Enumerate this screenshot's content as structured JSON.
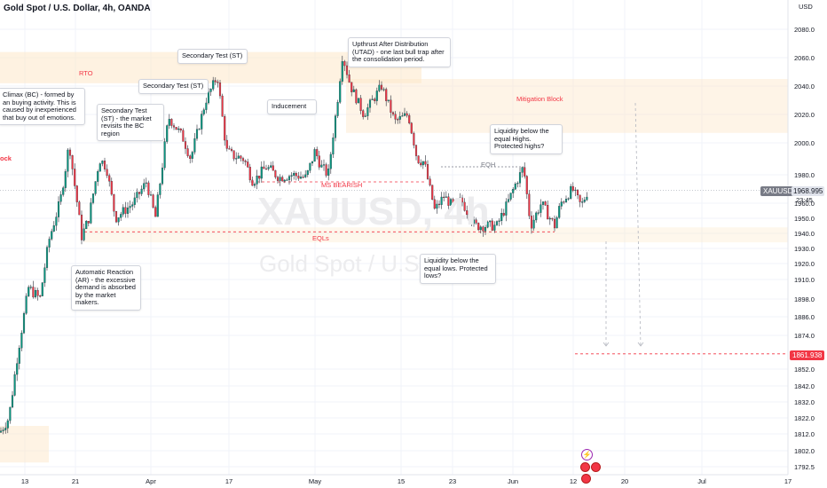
{
  "title": "Gold Spot / U.S. Dollar, 4h, OANDA",
  "watermark": {
    "symbol": "XAUUSD, 4h",
    "name": "Gold Spot / U.S. Dollar"
  },
  "colors": {
    "up": "#089981",
    "down": "#f23645",
    "accent": "#f23645",
    "zone": "#fde7c9",
    "grid": "#f0f3fa"
  },
  "annotations": {
    "bc": "Climax (BC) - formed by an buying activity. This is caused by inexperienced that buy out of emotions.",
    "st1": "Secondary Test (ST) - the market revisits the BC region",
    "st2": "Secondary Test (ST)",
    "st3": "Secondary Test (ST)",
    "inducement": "Inducement",
    "utad": "Upthrust After Distribution (UTAD) - one last bull trap after the consolidation period.",
    "ar": "Automatic Reaction (AR) - the excessive demand is absorbed by the market makers.",
    "liq_high": "Liquidity below the equal Highs. Protected highs?",
    "liq_low": "Liquidity below the equal lows. Protected lows?"
  },
  "labels": {
    "rto": "RTO",
    "mitigation": "Mitigation Block",
    "block": "ock",
    "ms_bearish": "MS BEARISH",
    "eqls": "EQLs",
    "eqh": "EQH"
  },
  "price_tags": {
    "symbol": "XAUUSD",
    "last": "1968.995",
    "countdown": "23:45",
    "target": "1861.938"
  },
  "chart_data": {
    "type": "candlestick",
    "title": "Gold Spot / U.S. Dollar, 4h, OANDA",
    "y_unit_label": "USD",
    "ylim": [
      1787,
      2110
    ],
    "y_ticks": [
      2080.0,
      2060.0,
      2040.0,
      2020.0,
      2000.0,
      1980.0,
      1960.0,
      1950.0,
      1940.0,
      1930.0,
      1920.0,
      1910.0,
      1898.0,
      1886.0,
      1874.0,
      1852.0,
      1842.0,
      1832.0,
      1822.0,
      1812.0,
      1802.0,
      1792.5
    ],
    "x_ticks": [
      "13",
      "21",
      "Apr",
      "17",
      "May",
      "15",
      "23",
      "Jun",
      "12",
      "20",
      "Jul",
      "17"
    ],
    "last_price": 1968.995,
    "target_price": 1861.938,
    "key_levels": {
      "ms_bearish": 1975,
      "eqls": 1941,
      "eqh": 1985
    },
    "zones": [
      {
        "name": "RTO",
        "from": 2042,
        "to": 2064
      },
      {
        "name": "Mitigation Block",
        "from": 2007,
        "to": 2045
      },
      {
        "name": "Lower zone",
        "from": 1934,
        "to": 1944
      },
      {
        "name": "Bottom zone",
        "from": 1795,
        "to": 1817
      }
    ],
    "grid": true,
    "legend": "none"
  }
}
